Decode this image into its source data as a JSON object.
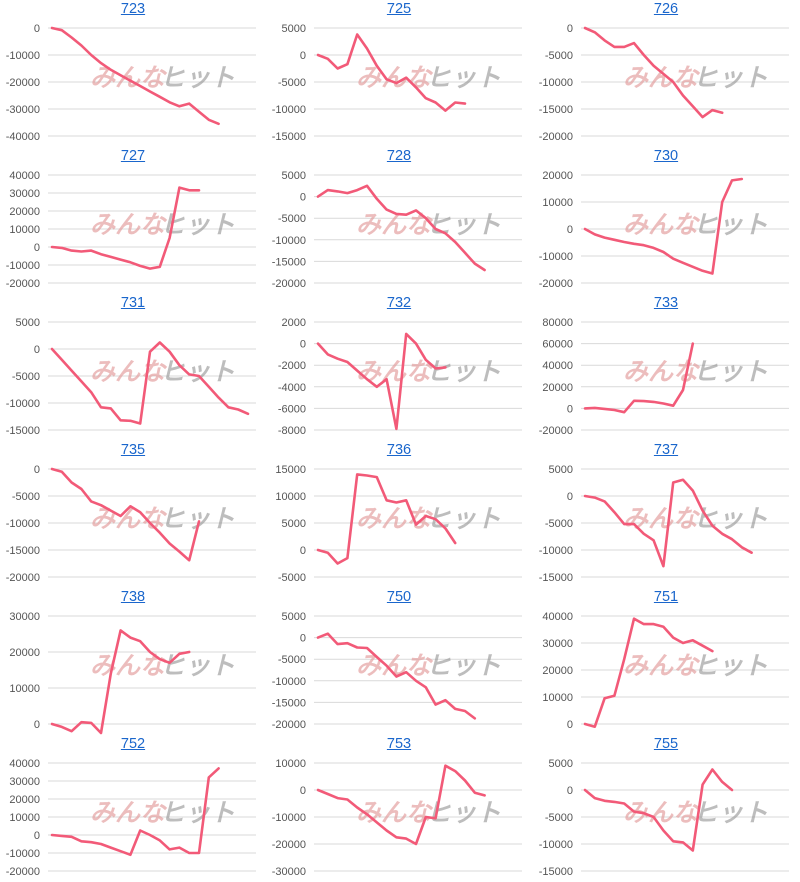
{
  "colors": {
    "series": "#f25a78",
    "title": "#1a66cc",
    "grid": "#d9d9d9",
    "tick": "#555555"
  },
  "watermark": {
    "part1": "みんな",
    "part2": "ヒット"
  },
  "chart_data": [
    {
      "type": "line",
      "title": "723",
      "ylim": [
        -40000,
        0
      ],
      "yticks": [
        0,
        -10000,
        -20000,
        -30000,
        -40000
      ],
      "tick_labels": [
        "0",
        "-10000",
        "-20000",
        "-30000",
        "-40000"
      ],
      "values": [
        0,
        -800,
        -3500,
        -6500,
        -10000,
        -13000,
        -15500,
        -17500,
        -19500,
        -21500,
        -23500,
        -25500,
        -27500,
        -29000,
        -28000,
        -31000,
        -34000,
        -35500
      ]
    },
    {
      "type": "line",
      "title": "725",
      "ylim": [
        -15000,
        5000
      ],
      "yticks": [
        5000,
        0,
        -5000,
        -10000,
        -15000
      ],
      "tick_labels": [
        "5000",
        "0",
        "-5000",
        "-10000",
        "-15000"
      ],
      "values": [
        0,
        -700,
        -2500,
        -1700,
        3800,
        1200,
        -2000,
        -4500,
        -5200,
        -4200,
        -6000,
        -8000,
        -8800,
        -10300,
        -8800,
        -9000
      ]
    },
    {
      "type": "line",
      "title": "726",
      "ylim": [
        -20000,
        0
      ],
      "yticks": [
        0,
        -5000,
        -10000,
        -15000,
        -20000
      ],
      "tick_labels": [
        "0",
        "-5000",
        "-10000",
        "-15000",
        "-20000"
      ],
      "values": [
        0,
        -800,
        -2300,
        -3500,
        -3500,
        -2800,
        -5000,
        -7000,
        -8500,
        -10000,
        -12500,
        -14500,
        -16500,
        -15200,
        -15700
      ]
    },
    {
      "type": "line",
      "title": "727",
      "ylim": [
        -20000,
        40000
      ],
      "yticks": [
        40000,
        30000,
        20000,
        10000,
        0,
        -10000,
        -20000
      ],
      "tick_labels": [
        "40000",
        "30000",
        "20000",
        "10000",
        "0",
        "-10000",
        "-20000"
      ],
      "values": [
        0,
        -500,
        -2000,
        -2500,
        -2000,
        -4000,
        -5500,
        -7000,
        -8500,
        -10500,
        -12000,
        -11000,
        5000,
        33000,
        31500,
        31500
      ]
    },
    {
      "type": "line",
      "title": "728",
      "ylim": [
        -20000,
        5000
      ],
      "yticks": [
        5000,
        0,
        -5000,
        -10000,
        -15000,
        -20000
      ],
      "tick_labels": [
        "5000",
        "0",
        "-5000",
        "-10000",
        "-15000",
        "-20000"
      ],
      "values": [
        0,
        1500,
        1200,
        800,
        1500,
        2500,
        -500,
        -3000,
        -4000,
        -4200,
        -3200,
        -5000,
        -7500,
        -8500,
        -10500,
        -13000,
        -15500,
        -17000
      ]
    },
    {
      "type": "line",
      "title": "730",
      "ylim": [
        -20000,
        20000
      ],
      "yticks": [
        20000,
        10000,
        0,
        -10000,
        -20000
      ],
      "tick_labels": [
        "20000",
        "10000",
        "0",
        "-10000",
        "-20000"
      ],
      "values": [
        0,
        -2000,
        -3200,
        -4000,
        -4800,
        -5500,
        -6000,
        -7000,
        -8500,
        -11000,
        -12500,
        -14000,
        -15500,
        -16500,
        10000,
        18000,
        18500
      ]
    },
    {
      "type": "line",
      "title": "731",
      "ylim": [
        -15000,
        5000
      ],
      "yticks": [
        5000,
        0,
        -5000,
        -10000,
        -15000
      ],
      "tick_labels": [
        "5000",
        "0",
        "-5000",
        "-10000",
        "-15000"
      ],
      "values": [
        0,
        -2000,
        -4000,
        -6000,
        -8000,
        -10800,
        -11000,
        -13200,
        -13300,
        -13800,
        -500,
        1200,
        -500,
        -3000,
        -4700,
        -5000,
        -7000,
        -9000,
        -10800,
        -11200,
        -12000
      ]
    },
    {
      "type": "line",
      "title": "732",
      "ylim": [
        -8000,
        2000
      ],
      "yticks": [
        2000,
        0,
        -2000,
        -4000,
        -6000,
        -8000
      ],
      "tick_labels": [
        "2000",
        "0",
        "-2000",
        "-4000",
        "-6000",
        "-8000"
      ],
      "values": [
        0,
        -1000,
        -1400,
        -1700,
        -2500,
        -3300,
        -4000,
        -3300,
        -7900,
        900,
        0,
        -1500,
        -2300,
        -2200
      ]
    },
    {
      "type": "line",
      "title": "733",
      "ylim": [
        -20000,
        80000
      ],
      "yticks": [
        80000,
        60000,
        40000,
        20000,
        0,
        -20000
      ],
      "tick_labels": [
        "80000",
        "60000",
        "40000",
        "20000",
        "0",
        "-20000"
      ],
      "values": [
        0,
        500,
        -500,
        -1500,
        -3500,
        7000,
        6800,
        6000,
        4500,
        2500,
        17000,
        60000
      ]
    },
    {
      "type": "line",
      "title": "735",
      "ylim": [
        -20000,
        0
      ],
      "yticks": [
        0,
        -5000,
        -10000,
        -15000,
        -20000
      ],
      "tick_labels": [
        "0",
        "-5000",
        "-10000",
        "-15000",
        "-20000"
      ],
      "values": [
        0,
        -500,
        -2500,
        -3700,
        -6000,
        -6700,
        -7700,
        -8700,
        -6900,
        -8000,
        -10000,
        -11800,
        -13800,
        -15300,
        -16900,
        -9700
      ]
    },
    {
      "type": "line",
      "title": "736",
      "ylim": [
        -5000,
        15000
      ],
      "yticks": [
        15000,
        10000,
        5000,
        0,
        -5000
      ],
      "tick_labels": [
        "15000",
        "10000",
        "5000",
        "0",
        "-5000"
      ],
      "values": [
        0,
        -500,
        -2500,
        -1500,
        14000,
        13800,
        13500,
        9200,
        8800,
        9200,
        4700,
        6300,
        5700,
        4000,
        1300
      ]
    },
    {
      "type": "line",
      "title": "737",
      "ylim": [
        -15000,
        5000
      ],
      "yticks": [
        5000,
        0,
        -5000,
        -10000,
        -15000
      ],
      "tick_labels": [
        "5000",
        "0",
        "-5000",
        "-10000",
        "-15000"
      ],
      "values": [
        0,
        -300,
        -1000,
        -3000,
        -5200,
        -5200,
        -7000,
        -8200,
        -13000,
        2500,
        3000,
        1000,
        -2700,
        -5500,
        -7000,
        -8000,
        -9500,
        -10500
      ]
    },
    {
      "type": "line",
      "title": "738",
      "ylim": [
        0,
        30000
      ],
      "yticks": [
        30000,
        20000,
        10000,
        0
      ],
      "tick_labels": [
        "30000",
        "20000",
        "10000",
        "0"
      ],
      "values": [
        0,
        -800,
        -2000,
        500,
        300,
        -2500,
        14000,
        26000,
        24000,
        23000,
        20000,
        18000,
        17000,
        19500,
        20000
      ]
    },
    {
      "type": "line",
      "title": "750",
      "ylim": [
        -20000,
        5000
      ],
      "yticks": [
        5000,
        0,
        -5000,
        -10000,
        -15000,
        -20000
      ],
      "tick_labels": [
        "5000",
        "0",
        "-5000",
        "-10000",
        "-15000",
        "-20000"
      ],
      "values": [
        0,
        900,
        -1500,
        -1300,
        -2300,
        -2400,
        -4500,
        -6500,
        -9000,
        -8000,
        -10000,
        -11500,
        -15500,
        -14500,
        -16500,
        -17000,
        -18700
      ]
    },
    {
      "type": "line",
      "title": "751",
      "ylim": [
        0,
        40000
      ],
      "yticks": [
        40000,
        30000,
        20000,
        10000,
        0
      ],
      "tick_labels": [
        "40000",
        "30000",
        "20000",
        "10000",
        "0"
      ],
      "values": [
        0,
        -1000,
        9500,
        10500,
        24000,
        39000,
        37000,
        37000,
        36000,
        32000,
        30000,
        31000,
        29000,
        27000
      ]
    },
    {
      "type": "line",
      "title": "752",
      "ylim": [
        -20000,
        40000
      ],
      "yticks": [
        40000,
        30000,
        20000,
        10000,
        0,
        -10000,
        -20000
      ],
      "tick_labels": [
        "40000",
        "30000",
        "20000",
        "10000",
        "0",
        "-10000",
        "-20000"
      ],
      "values": [
        0,
        -500,
        -1000,
        -3500,
        -4000,
        -5000,
        -7000,
        -9000,
        -11000,
        2500,
        0,
        -3000,
        -8000,
        -7000,
        -10000,
        -10000,
        32000,
        37000
      ]
    },
    {
      "type": "line",
      "title": "753",
      "ylim": [
        -30000,
        10000
      ],
      "yticks": [
        10000,
        0,
        -10000,
        -20000,
        -30000
      ],
      "tick_labels": [
        "10000",
        "0",
        "-10000",
        "-20000",
        "-30000"
      ],
      "values": [
        0,
        -1500,
        -3000,
        -3500,
        -6500,
        -9000,
        -12000,
        -15000,
        -17500,
        -18000,
        -20000,
        -10000,
        -10500,
        9000,
        7000,
        3500,
        -1000,
        -2000
      ]
    },
    {
      "type": "line",
      "title": "755",
      "ylim": [
        -15000,
        5000
      ],
      "yticks": [
        5000,
        0,
        -5000,
        -10000,
        -15000
      ],
      "tick_labels": [
        "5000",
        "0",
        "-5000",
        "-10000",
        "-15000"
      ],
      "values": [
        0,
        -1500,
        -2000,
        -2200,
        -2500,
        -4000,
        -4300,
        -5000,
        -7500,
        -9500,
        -9700,
        -11200,
        1000,
        3800,
        1500,
        0
      ]
    }
  ]
}
